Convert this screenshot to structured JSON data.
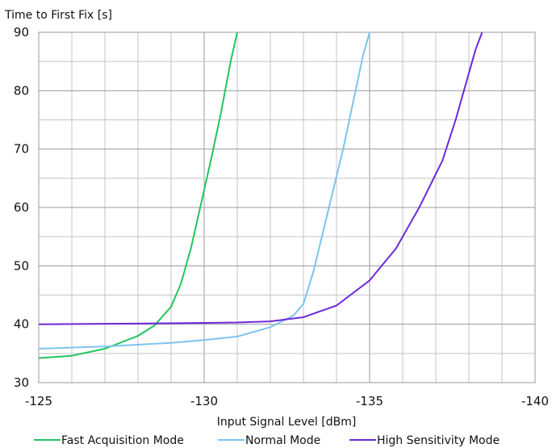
{
  "chart_data": {
    "type": "line",
    "ylabel": "Time to First Fix [s]",
    "xlabel": "Input Signal Level [dBm]",
    "xlim": [
      -125,
      -140
    ],
    "ylim": [
      30,
      90
    ],
    "x_ticks": [
      "-125",
      "-130",
      "-135",
      "-140"
    ],
    "y_ticks": [
      "30",
      "40",
      "50",
      "60",
      "70",
      "80",
      "90"
    ],
    "grid": true,
    "legend_position": "bottom",
    "series": [
      {
        "name": "Fast Acquisition Mode",
        "color": "#22c55e",
        "points": [
          [
            -125,
            34.2
          ],
          [
            -126,
            34.6
          ],
          [
            -127,
            35.8
          ],
          [
            -128,
            38.0
          ],
          [
            -128.5,
            39.8
          ],
          [
            -129,
            43.0
          ],
          [
            -129.3,
            47.0
          ],
          [
            -129.6,
            53.0
          ],
          [
            -129.9,
            60.5
          ],
          [
            -130.2,
            68.0
          ],
          [
            -130.5,
            76.0
          ],
          [
            -130.8,
            85.0
          ],
          [
            -131,
            90.0
          ]
        ]
      },
      {
        "name": "Normal Mode",
        "color": "#7cc4ee",
        "points": [
          [
            -125,
            35.8
          ],
          [
            -127,
            36.2
          ],
          [
            -129,
            36.8
          ],
          [
            -130,
            37.3
          ],
          [
            -131,
            37.9
          ],
          [
            -132,
            39.5
          ],
          [
            -132.7,
            41.5
          ],
          [
            -133,
            43.5
          ],
          [
            -133.3,
            49.0
          ],
          [
            -133.6,
            56.0
          ],
          [
            -133.9,
            63.0
          ],
          [
            -134.2,
            70.0
          ],
          [
            -134.5,
            78.0
          ],
          [
            -134.8,
            86.0
          ],
          [
            -135,
            90.0
          ]
        ]
      },
      {
        "name": "High Sensitivity Mode",
        "color": "#6d28d9",
        "points": [
          [
            -125,
            40.0
          ],
          [
            -128,
            40.1
          ],
          [
            -131,
            40.3
          ],
          [
            -132,
            40.5
          ],
          [
            -133,
            41.2
          ],
          [
            -134,
            43.2
          ],
          [
            -135,
            47.5
          ],
          [
            -135.8,
            53.0
          ],
          [
            -136.5,
            60.0
          ],
          [
            -137.2,
            68.0
          ],
          [
            -137.6,
            75.0
          ],
          [
            -138,
            83.0
          ],
          [
            -138.2,
            87.0
          ],
          [
            -138.4,
            90.0
          ]
        ]
      }
    ]
  }
}
